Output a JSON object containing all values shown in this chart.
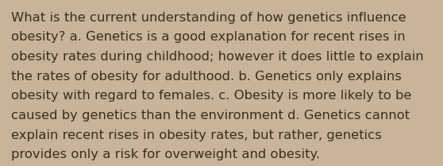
{
  "background_color": "#c8b49a",
  "text_color": "#3a2e1e",
  "lines": [
    "What is the current understanding of how genetics influence",
    "obesity? a. Genetics is a good explanation for recent rises in",
    "obesity rates during childhood; however it does little to explain",
    "the rates of obesity for adulthood. b. Genetics only explains",
    "obesity with regard to females. c. Obesity is more likely to be",
    "caused by genetics than the environment d. Genetics cannot",
    "explain recent rises in obesity rates, but rather, genetics",
    "provides only a risk for overweight and obesity."
  ],
  "font_size": 11.8,
  "font_family": "DejaVu Sans",
  "figwidth": 5.58,
  "figheight": 2.09,
  "dpi": 100
}
